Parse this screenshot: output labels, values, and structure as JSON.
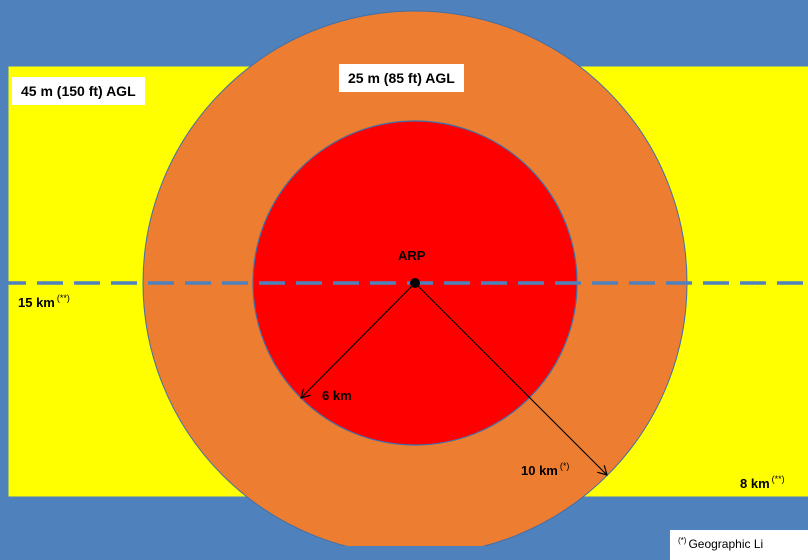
{
  "zones": {
    "outer_label": "45 m (150 ft) AGL",
    "middle_label": "25 m (85 ft) AGL",
    "center_label": "ARP"
  },
  "radii": {
    "inner_label": "6 km",
    "middle_label": "10 km",
    "middle_mark": "(*)",
    "left_label": "15 km",
    "left_mark": "(**)",
    "right_label": "8 km",
    "right_mark": "(**)"
  },
  "footnote": {
    "mark": "(*)",
    "text": "Geographic Li"
  },
  "colors": {
    "background": "#4f81bd",
    "outer_zone": "#ffff00",
    "middle_zone": "#ed7d31",
    "inner_zone": "#ff0000",
    "centerline": "#4f81bd"
  }
}
